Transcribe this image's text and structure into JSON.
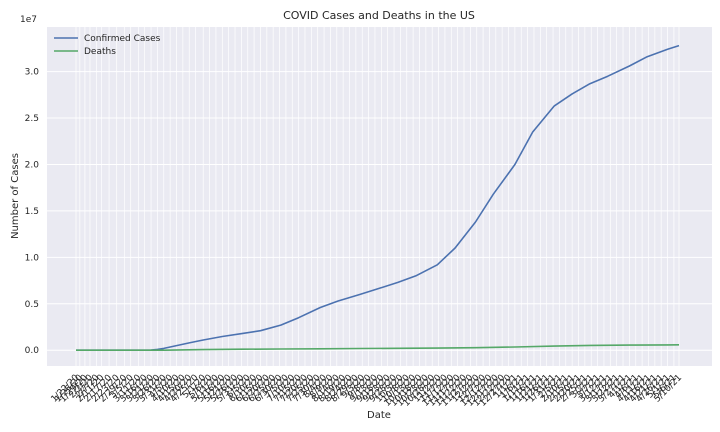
{
  "chart_data": {
    "type": "line",
    "title": "COVID Cases and Deaths in the US",
    "xlabel": "Date",
    "ylabel": "Number of Cases",
    "y_offset_label": "1e7",
    "ylim": [
      -1700000,
      34800000
    ],
    "yticks": [
      0,
      5000000,
      10000000,
      15000000,
      20000000,
      25000000,
      30000000
    ],
    "ytick_labels": [
      "0.0",
      "0.5",
      "1.0",
      "1.5",
      "2.0",
      "2.5",
      "3.0"
    ],
    "grid": true,
    "legend_position": "upper-left",
    "x_tick_labels": [
      "1/22/20",
      "1/25/20",
      "1/29/20",
      "2/2/20",
      "2/7/20",
      "2/11/20",
      "2/17/20",
      "2/23/20",
      "2/29/20",
      "3/5/20",
      "3/11/20",
      "3/16/20",
      "3/21/20",
      "3/26/20",
      "3/31/20",
      "4/5/20",
      "4/10/20",
      "4/15/20",
      "4/20/20",
      "4/25/20",
      "5/1/20",
      "5/6/20",
      "5/11/20",
      "5/16/20",
      "5/21/20",
      "5/26/20",
      "5/31/20",
      "6/5/20",
      "6/10/20",
      "6/15/20",
      "6/20/20",
      "6/25/20",
      "6/30/20",
      "7/5/20",
      "7/10/20",
      "7/15/20",
      "7/20/20",
      "7/25/20",
      "7/30/20",
      "8/4/20",
      "8/9/20",
      "8/14/20",
      "8/19/20",
      "8/24/20",
      "8/29/20",
      "9/3/20",
      "9/8/20",
      "9/13/20",
      "9/18/20",
      "9/23/20",
      "9/28/20",
      "10/3/20",
      "10/8/20",
      "10/13/20",
      "10/18/20",
      "10/23/20",
      "10/28/20",
      "11/2/20",
      "11/7/20",
      "11/12/20",
      "11/17/20",
      "11/22/20",
      "11/27/20",
      "12/2/20",
      "12/7/20",
      "12/12/20",
      "12/17/20",
      "12/22/20",
      "12/27/20",
      "1/1/21",
      "1/6/21",
      "1/11/21",
      "1/16/21",
      "1/21/21",
      "1/26/21",
      "1/31/21",
      "2/5/21",
      "2/10/21",
      "2/15/21",
      "2/20/21",
      "2/25/21",
      "3/2/21",
      "3/7/21",
      "3/12/21",
      "3/17/21",
      "3/22/21",
      "3/27/21",
      "4/1/21",
      "4/6/21",
      "4/11/21",
      "4/16/21",
      "4/21/21",
      "4/26/21",
      "5/1/21",
      "5/6/21",
      "5/10/21"
    ],
    "series": [
      {
        "name": "Confirmed Cases",
        "color": "#4c72b0",
        "points": [
          [
            "1/22/20",
            0
          ],
          [
            "2/29/20",
            70
          ],
          [
            "3/16/20",
            4600
          ],
          [
            "3/21/20",
            26000
          ],
          [
            "3/26/20",
            85000
          ],
          [
            "3/31/20",
            190000
          ],
          [
            "4/10/20",
            500000
          ],
          [
            "4/20/20",
            790000
          ],
          [
            "5/1/20",
            1100000
          ],
          [
            "5/16/20",
            1480000
          ],
          [
            "6/1/20",
            1810000
          ],
          [
            "6/15/20",
            2100000
          ],
          [
            "7/1/20",
            2700000
          ],
          [
            "7/15/20",
            3500000
          ],
          [
            "8/1/20",
            4600000
          ],
          [
            "8/15/20",
            5300000
          ],
          [
            "9/1/20",
            6000000
          ],
          [
            "9/15/20",
            6600000
          ],
          [
            "10/1/20",
            7300000
          ],
          [
            "10/15/20",
            8000000
          ],
          [
            "11/1/20",
            9200000
          ],
          [
            "11/15/20",
            11000000
          ],
          [
            "12/1/20",
            13800000
          ],
          [
            "12/15/20",
            16800000
          ],
          [
            "1/1/21",
            20000000
          ],
          [
            "1/15/21",
            23500000
          ],
          [
            "2/1/21",
            26300000
          ],
          [
            "2/15/21",
            27600000
          ],
          [
            "3/1/21",
            28700000
          ],
          [
            "3/15/21",
            29500000
          ],
          [
            "4/1/21",
            30600000
          ],
          [
            "4/15/21",
            31600000
          ],
          [
            "5/1/21",
            32400000
          ],
          [
            "5/10/21",
            32800000
          ]
        ]
      },
      {
        "name": "Deaths",
        "color": "#55a868",
        "points": [
          [
            "1/22/20",
            0
          ],
          [
            "3/15/20",
            100
          ],
          [
            "4/1/20",
            5000
          ],
          [
            "5/1/20",
            65000
          ],
          [
            "6/1/20",
            105000
          ],
          [
            "7/1/20",
            128000
          ],
          [
            "8/1/20",
            155000
          ],
          [
            "9/1/20",
            185000
          ],
          [
            "10/1/20",
            207000
          ],
          [
            "11/1/20",
            232000
          ],
          [
            "12/1/20",
            272000
          ],
          [
            "1/1/21",
            350000
          ],
          [
            "2/1/21",
            440000
          ],
          [
            "3/1/21",
            515000
          ],
          [
            "4/1/21",
            552000
          ],
          [
            "5/1/21",
            577000
          ],
          [
            "5/10/21",
            582000
          ]
        ]
      }
    ]
  }
}
